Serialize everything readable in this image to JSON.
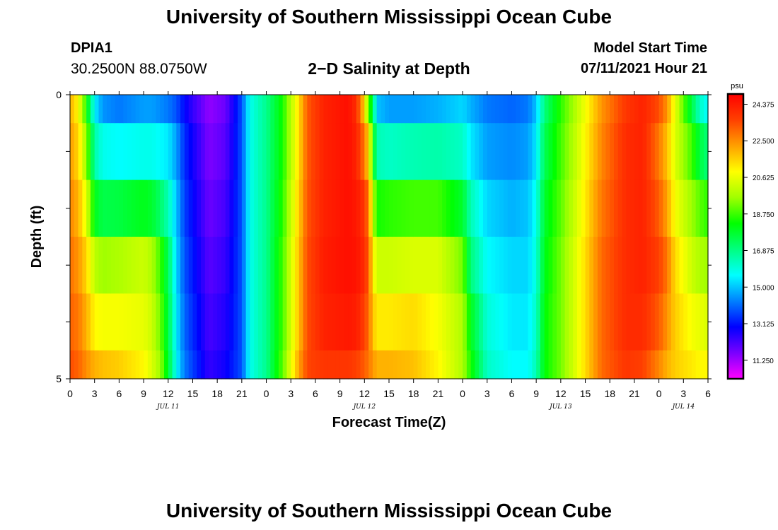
{
  "header": {
    "title_top": "University of Southern Mississippi Ocean Cube",
    "title_bottom": "University of Southern Mississippi Ocean Cube",
    "station": "DPIA1",
    "coords": "30.2500N  88.0750W",
    "subtitle": "2−D Salinity at Depth",
    "model_start_label": "Model Start Time",
    "model_start_value": "07/11/2021 Hour 21"
  },
  "chart_data": {
    "type": "heatmap",
    "title": "2−D Salinity at Depth",
    "xlabel": "Forecast Time(Z)",
    "ylabel": "Depth (ft)",
    "x_tick_labels": [
      "0",
      "3",
      "6",
      "9",
      "12",
      "15",
      "18",
      "21",
      "0",
      "3",
      "6",
      "9",
      "12",
      "15",
      "18",
      "21",
      "0",
      "3",
      "6",
      "9",
      "12",
      "15",
      "18",
      "21",
      "0",
      "3",
      "6"
    ],
    "date_labels": [
      {
        "label": "JUL 11",
        "hour": 12
      },
      {
        "label": "JUL 12",
        "hour": 36
      },
      {
        "label": "JUL 13",
        "hour": 60
      },
      {
        "label": "JUL 14",
        "hour": 75
      }
    ],
    "x_range_hours": [
      0,
      78
    ],
    "y_tick_labels": [
      "0",
      "5"
    ],
    "ylim": [
      0,
      5
    ],
    "y_minor_ticks": 4,
    "depth_rows": [
      "0-0.5",
      "0.5-1.5",
      "1.5-2.5",
      "2.5-3.5",
      "3.5-4.5",
      "4.5-5"
    ],
    "salinity_profiles": [
      {
        "hour": 0,
        "values": [
          22.0,
          22.3,
          22.6,
          22.9,
          23.1,
          23.4
        ]
      },
      {
        "hour": 1,
        "values": [
          21.0,
          21.5,
          22.0,
          22.4,
          22.8,
          23.1
        ]
      },
      {
        "hour": 2,
        "values": [
          18.5,
          19.5,
          20.5,
          21.5,
          22.0,
          22.5
        ]
      },
      {
        "hour": 3,
        "values": [
          15.5,
          16.5,
          18.0,
          20.0,
          21.0,
          22.0
        ]
      },
      {
        "hour": 4,
        "values": [
          14.5,
          15.8,
          17.5,
          19.6,
          20.8,
          21.8
        ]
      },
      {
        "hour": 6,
        "values": [
          14.2,
          15.6,
          17.6,
          19.8,
          20.8,
          21.6
        ]
      },
      {
        "hour": 9,
        "values": [
          14.6,
          15.8,
          18.0,
          20.2,
          20.6,
          21.0
        ]
      },
      {
        "hour": 10,
        "values": [
          14.6,
          15.8,
          17.8,
          19.8,
          20.2,
          20.4
        ]
      },
      {
        "hour": 11,
        "values": [
          14.4,
          15.6,
          17.2,
          18.8,
          19.2,
          19.6
        ]
      },
      {
        "hour": 12,
        "values": [
          14.2,
          15.4,
          16.4,
          17.4,
          17.6,
          17.8
        ]
      },
      {
        "hour": 13,
        "values": [
          13.8,
          14.6,
          15.0,
          15.2,
          15.4,
          15.6
        ]
      },
      {
        "hour": 14,
        "values": [
          13.0,
          13.4,
          13.6,
          13.8,
          14.0,
          14.2
        ]
      },
      {
        "hour": 15,
        "values": [
          12.4,
          12.8,
          13.0,
          13.2,
          13.4,
          13.6
        ]
      },
      {
        "hour": 17,
        "values": [
          11.4,
          11.6,
          11.8,
          12.0,
          12.2,
          12.4
        ]
      },
      {
        "hour": 19,
        "values": [
          11.8,
          12.0,
          12.2,
          12.4,
          12.6,
          12.8
        ]
      },
      {
        "hour": 21,
        "values": [
          13.8,
          13.8,
          13.8,
          13.8,
          13.8,
          13.8
        ]
      },
      {
        "hour": 22,
        "values": [
          15.8,
          15.8,
          15.8,
          15.8,
          15.8,
          15.8
        ]
      },
      {
        "hour": 24,
        "values": [
          16.8,
          16.8,
          16.8,
          16.8,
          16.8,
          16.8
        ]
      },
      {
        "hour": 26,
        "values": [
          18.4,
          18.4,
          18.6,
          18.8,
          18.8,
          19.0
        ]
      },
      {
        "hour": 28,
        "values": [
          21.4,
          21.4,
          21.6,
          21.8,
          21.8,
          22.2
        ]
      },
      {
        "hour": 29,
        "values": [
          23.2,
          23.2,
          23.3,
          23.4,
          23.4,
          23.5
        ]
      },
      {
        "hour": 31,
        "values": [
          24.2,
          24.2,
          24.2,
          24.3,
          24.2,
          23.8
        ]
      },
      {
        "hour": 34,
        "values": [
          24.6,
          24.6,
          24.6,
          24.6,
          24.4,
          23.8
        ]
      },
      {
        "hour": 35,
        "values": [
          24.0,
          24.2,
          24.4,
          24.5,
          24.3,
          23.6
        ]
      },
      {
        "hour": 36,
        "values": [
          21.5,
          22.8,
          23.8,
          24.0,
          23.6,
          23.2
        ]
      },
      {
        "hour": 36.5,
        "values": [
          19.0,
          21.5,
          22.8,
          23.2,
          23.0,
          22.8
        ]
      },
      {
        "hour": 37,
        "values": [
          17.5,
          18.5,
          20.2,
          21.2,
          21.8,
          22.4
        ]
      },
      {
        "hour": 37.5,
        "values": [
          15.0,
          16.4,
          18.4,
          20.2,
          21.2,
          22.0
        ]
      },
      {
        "hour": 39,
        "values": [
          14.6,
          16.2,
          18.6,
          20.2,
          21.2,
          22.0
        ]
      },
      {
        "hour": 42,
        "values": [
          14.6,
          16.4,
          18.8,
          20.4,
          21.4,
          21.8
        ]
      },
      {
        "hour": 45,
        "values": [
          14.8,
          16.5,
          18.8,
          20.4,
          20.8,
          21.0
        ]
      },
      {
        "hour": 48,
        "values": [
          15.2,
          16.2,
          17.8,
          19.2,
          19.8,
          19.8
        ]
      },
      {
        "hour": 49,
        "values": [
          14.8,
          15.4,
          16.4,
          17.0,
          18.0,
          18.4
        ]
      },
      {
        "hour": 51,
        "values": [
          14.2,
          14.6,
          15.2,
          15.6,
          16.0,
          16.2
        ]
      },
      {
        "hour": 54,
        "values": [
          14.0,
          14.4,
          14.8,
          15.2,
          15.4,
          15.6
        ]
      },
      {
        "hour": 56,
        "values": [
          14.2,
          14.6,
          15.0,
          15.2,
          15.4,
          15.6
        ]
      },
      {
        "hour": 57,
        "values": [
          15.0,
          15.4,
          15.8,
          16.0,
          16.2,
          16.4
        ]
      },
      {
        "hour": 58,
        "values": [
          17.0,
          17.4,
          17.8,
          18.0,
          18.2,
          18.2
        ]
      },
      {
        "hour": 60,
        "values": [
          18.6,
          18.8,
          19.0,
          19.2,
          19.2,
          19.2
        ]
      },
      {
        "hour": 62,
        "values": [
          20.0,
          20.2,
          20.4,
          20.6,
          20.6,
          20.6
        ]
      },
      {
        "hour": 65,
        "values": [
          22.4,
          22.6,
          22.8,
          23.0,
          23.0,
          23.0
        ]
      },
      {
        "hour": 68,
        "values": [
          23.8,
          24.0,
          24.0,
          24.0,
          24.0,
          23.8
        ]
      },
      {
        "hour": 70,
        "values": [
          24.2,
          24.2,
          24.2,
          24.2,
          24.0,
          23.6
        ]
      },
      {
        "hour": 72,
        "values": [
          23.4,
          22.8,
          23.2,
          23.6,
          23.2,
          22.6
        ]
      },
      {
        "hour": 73,
        "values": [
          22.4,
          21.8,
          22.2,
          22.8,
          22.4,
          22.0
        ]
      },
      {
        "hour": 74,
        "values": [
          20.6,
          20.4,
          20.8,
          21.4,
          21.6,
          21.6
        ]
      },
      {
        "hour": 75,
        "values": [
          19.0,
          19.6,
          20.2,
          20.8,
          21.2,
          21.4
        ]
      },
      {
        "hour": 76,
        "values": [
          17.6,
          18.8,
          19.6,
          20.2,
          20.8,
          21.2
        ]
      },
      {
        "hour": 77,
        "values": [
          16.2,
          17.6,
          19.0,
          19.8,
          20.6,
          21.0
        ]
      },
      {
        "hour": 78,
        "values": [
          15.6,
          17.0,
          18.6,
          19.6,
          20.4,
          21.0
        ]
      }
    ],
    "colorbar": {
      "unit": "psu",
      "tick_labels": [
        "24.375",
        "22.500",
        "20.625",
        "18.750",
        "16.875",
        "15.000",
        "13.125",
        "11.250"
      ],
      "tick_values": [
        24.375,
        22.5,
        20.625,
        18.75,
        16.875,
        15.0,
        13.125,
        11.25
      ],
      "range": [
        10.3,
        24.9
      ],
      "colors": [
        "#ff00ff",
        "#7a00ff",
        "#0000ff",
        "#0080ff",
        "#00ffff",
        "#00ff80",
        "#00ff00",
        "#a0ff00",
        "#ffff00",
        "#ffa000",
        "#ff4000",
        "#ff0000"
      ]
    }
  }
}
